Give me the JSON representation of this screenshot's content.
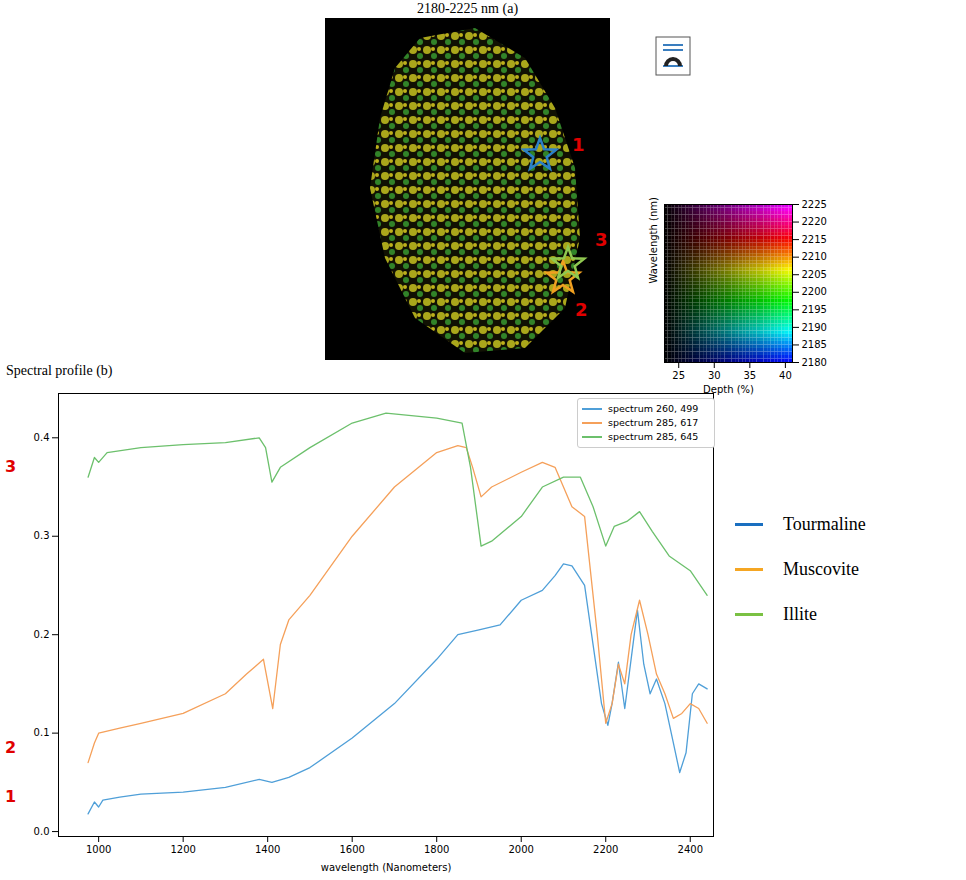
{
  "chart_data": [
    {
      "type": "image",
      "title": "2180-2225 nm (a)",
      "markers": [
        {
          "label": "1",
          "color": "#2a80c8"
        },
        {
          "label": "2",
          "color": "#f0a020"
        },
        {
          "label": "3",
          "color": "#90c850"
        }
      ]
    },
    {
      "type": "heatmap",
      "x_label": "Depth (%)",
      "y_label": "Wavelength (nm)",
      "xlim": [
        23,
        41
      ],
      "xticks": [
        25,
        30,
        35,
        40
      ],
      "ylim": [
        2180,
        2225
      ],
      "yticks": [
        2180,
        2185,
        2190,
        2195,
        2200,
        2205,
        2210,
        2215,
        2220,
        2225
      ]
    },
    {
      "type": "line",
      "title": "Spectral profile (b)",
      "x_label": "wavelength (Nanometers)",
      "xlim": [
        905,
        2455
      ],
      "xticks": [
        1000,
        1200,
        1400,
        1600,
        1800,
        2000,
        2200,
        2400
      ],
      "ylim": [
        -0.005,
        0.445
      ],
      "yticks": [
        {
          "value": 0,
          "label": "0.0"
        },
        {
          "value": 0.1,
          "label": "0.1"
        },
        {
          "value": 0.2,
          "label": "0.2"
        },
        {
          "value": 0.3,
          "label": "0.3"
        },
        {
          "value": 0.4,
          "label": "0.4"
        }
      ],
      "legend": "upper right",
      "series": [
        {
          "name": "spectrum 260, 499",
          "color": "#4f9fd8",
          "x": [
            975,
            990,
            1000,
            1010,
            1050,
            1100,
            1200,
            1300,
            1380,
            1410,
            1450,
            1500,
            1600,
            1700,
            1800,
            1850,
            1900,
            1950,
            2000,
            2050,
            2080,
            2100,
            2120,
            2150,
            2170,
            2190,
            2205,
            2215,
            2230,
            2245,
            2260,
            2275,
            2290,
            2305,
            2320,
            2340,
            2360,
            2375,
            2390,
            2405,
            2420,
            2440
          ],
          "values": [
            0.018,
            0.03,
            0.025,
            0.032,
            0.035,
            0.038,
            0.04,
            0.045,
            0.053,
            0.05,
            0.055,
            0.065,
            0.095,
            0.13,
            0.175,
            0.2,
            0.205,
            0.21,
            0.235,
            0.245,
            0.26,
            0.272,
            0.27,
            0.25,
            0.19,
            0.13,
            0.108,
            0.13,
            0.172,
            0.125,
            0.175,
            0.225,
            0.17,
            0.14,
            0.155,
            0.13,
            0.09,
            0.06,
            0.08,
            0.14,
            0.15,
            0.145
          ]
        },
        {
          "name": "spectrum 285, 617",
          "color": "#f5a05a",
          "x": [
            975,
            990,
            1000,
            1050,
            1100,
            1200,
            1300,
            1350,
            1390,
            1412,
            1430,
            1450,
            1500,
            1600,
            1700,
            1800,
            1850,
            1870,
            1885,
            1905,
            1930,
            2000,
            2050,
            2080,
            2120,
            2150,
            2180,
            2200,
            2215,
            2230,
            2245,
            2260,
            2280,
            2300,
            2320,
            2340,
            2360,
            2380,
            2400,
            2420,
            2440
          ],
          "values": [
            0.07,
            0.09,
            0.1,
            0.105,
            0.11,
            0.12,
            0.14,
            0.16,
            0.175,
            0.125,
            0.19,
            0.215,
            0.24,
            0.3,
            0.35,
            0.385,
            0.392,
            0.39,
            0.37,
            0.34,
            0.35,
            0.365,
            0.375,
            0.37,
            0.33,
            0.32,
            0.2,
            0.11,
            0.13,
            0.17,
            0.15,
            0.2,
            0.235,
            0.2,
            0.16,
            0.14,
            0.115,
            0.12,
            0.13,
            0.125,
            0.11
          ]
        },
        {
          "name": "spectrum 285, 645",
          "color": "#6cc06c",
          "x": [
            975,
            990,
            1000,
            1020,
            1100,
            1200,
            1300,
            1380,
            1395,
            1410,
            1430,
            1500,
            1600,
            1680,
            1800,
            1860,
            1880,
            1905,
            1930,
            2000,
            2050,
            2100,
            2140,
            2170,
            2200,
            2220,
            2250,
            2280,
            2310,
            2350,
            2400,
            2440
          ],
          "values": [
            0.36,
            0.38,
            0.375,
            0.385,
            0.39,
            0.393,
            0.395,
            0.4,
            0.39,
            0.355,
            0.37,
            0.39,
            0.415,
            0.425,
            0.42,
            0.415,
            0.37,
            0.29,
            0.295,
            0.32,
            0.35,
            0.36,
            0.36,
            0.33,
            0.29,
            0.31,
            0.315,
            0.325,
            0.305,
            0.28,
            0.265,
            0.24
          ]
        }
      ],
      "annotations": [
        {
          "text": "3",
          "y": 0.37
        },
        {
          "text": "2",
          "y": 0.085
        },
        {
          "text": "1",
          "y": 0.035
        }
      ],
      "key": [
        {
          "name": "Tourmaline",
          "color": "#1a6fc0"
        },
        {
          "name": "Muscovite",
          "color": "#f5a623"
        },
        {
          "name": "Illite",
          "color": "#7ac143"
        }
      ]
    }
  ]
}
